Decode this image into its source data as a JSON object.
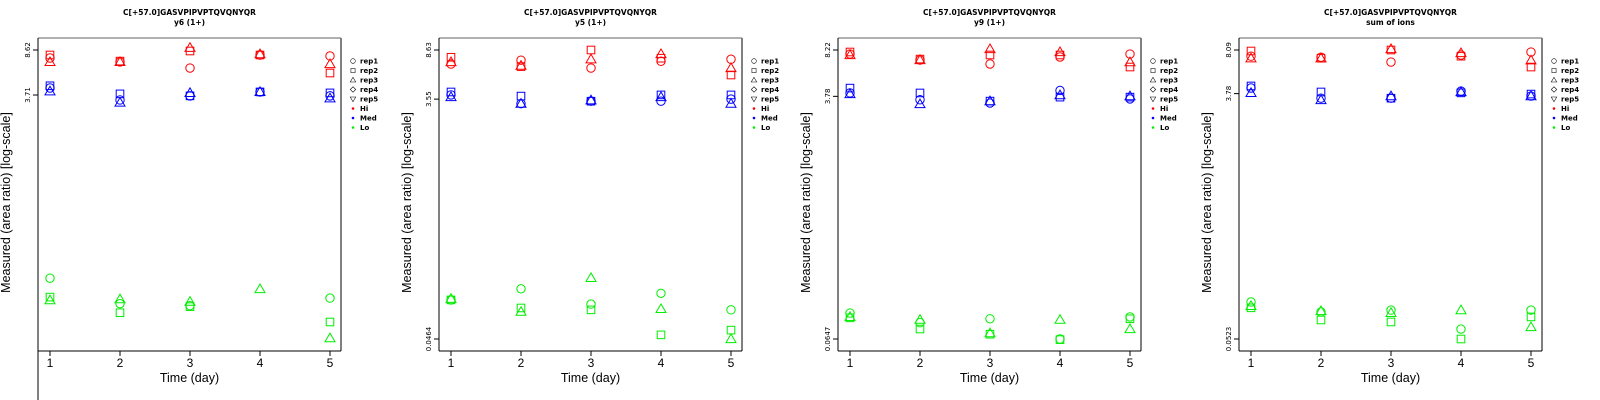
{
  "colors": {
    "Hi": "#ff0000",
    "Med": "#0000ff",
    "Lo": "#00ee00",
    "axis": "#000000",
    "frame_right": "#808080"
  },
  "chart_data": [
    {
      "type": "scatter",
      "scale": "log",
      "title": "C[+57.0]GASVPIPVPTQVQNYQR",
      "subtitle": "y6 (1+)",
      "xlabel": "Time (day)",
      "ylabel": "Measured (area ratio) [log-scale]",
      "x_ticks": [
        "1",
        "2",
        "3",
        "4",
        "5"
      ],
      "y_ticks": [
        {
          "value": 8.62,
          "label": "8.62"
        },
        {
          "value": 3.71,
          "label": "3.71"
        }
      ],
      "ylim": [
        0.0384,
        8.62
      ],
      "xlim": [
        1,
        5
      ],
      "legend": {
        "position": "right",
        "entries": [
          "rep1",
          "rep2",
          "rep3",
          "rep4",
          "rep5",
          "Hi",
          "Med",
          "Lo"
        ]
      },
      "series": [
        {
          "group": "Hi",
          "rep": "rep1",
          "x": [
            1,
            2,
            3,
            4,
            5
          ],
          "y": [
            7.42,
            6.89,
            6.15,
            7.85,
            7.71
          ]
        },
        {
          "group": "Hi",
          "rep": "rep2",
          "x": [
            1,
            2,
            3,
            4,
            5
          ],
          "y": [
            7.85,
            7.0,
            8.46,
            7.85,
            5.6
          ]
        },
        {
          "group": "Hi",
          "rep": "rep3",
          "x": [
            1,
            2,
            3,
            4,
            5
          ],
          "y": [
            6.89,
            6.89,
            8.99,
            7.98,
            6.63
          ]
        },
        {
          "group": "Med",
          "rep": "rep1",
          "x": [
            1,
            2,
            3,
            4,
            5
          ],
          "y": [
            4.23,
            3.38,
            3.65,
            3.93,
            3.65
          ]
        },
        {
          "group": "Med",
          "rep": "rep2",
          "x": [
            1,
            2,
            3,
            4,
            5
          ],
          "y": [
            4.41,
            3.79,
            3.65,
            3.93,
            3.86
          ]
        },
        {
          "group": "Med",
          "rep": "rep3",
          "x": [
            1,
            2,
            3,
            4,
            5
          ],
          "y": [
            3.98,
            3.22,
            3.86,
            3.93,
            3.49
          ]
        },
        {
          "group": "Lo",
          "rep": "rep1",
          "x": [
            1,
            2,
            3,
            5
          ],
          "y": [
            0.12,
            0.0744,
            0.0717,
            0.0826
          ]
        },
        {
          "group": "Lo",
          "rep": "rep2",
          "x": [
            1,
            2,
            3,
            5
          ],
          "y": [
            0.0842,
            0.0628,
            0.0704,
            0.0528
          ]
        },
        {
          "group": "Lo",
          "rep": "rep3",
          "x": [
            1,
            2,
            3,
            4,
            5
          ],
          "y": [
            0.0795,
            0.081,
            0.0773,
            0.0979,
            0.039
          ]
        }
      ]
    },
    {
      "type": "scatter",
      "scale": "log",
      "title": "C[+57.0]GASVPIPVPTQVQNYQR",
      "subtitle": "y5 (1+)",
      "xlabel": "Time (day)",
      "ylabel": "Measured (area ratio) [log-scale]",
      "x_ticks": [
        "1",
        "2",
        "3",
        "4",
        "5"
      ],
      "y_ticks": [
        {
          "value": 8.63,
          "label": "8.63"
        },
        {
          "value": 3.55,
          "label": "3.55"
        },
        {
          "value": 0.0464,
          "label": "0.0464"
        }
      ],
      "ylim": [
        0.0464,
        8.63
      ],
      "xlim": [
        1,
        5
      ],
      "legend": {
        "position": "right",
        "entries": [
          "rep1",
          "rep2",
          "rep3",
          "rep4",
          "rep5",
          "Hi",
          "Med",
          "Lo"
        ]
      },
      "series": [
        {
          "group": "Hi",
          "rep": "rep1",
          "x": [
            1,
            2,
            3,
            4,
            5
          ],
          "y": [
            6.7,
            7.18,
            6.23,
            7.04,
            7.3
          ]
        },
        {
          "group": "Hi",
          "rep": "rep2",
          "x": [
            1,
            2,
            3,
            4,
            5
          ],
          "y": [
            7.57,
            6.39,
            8.63,
            7.44,
            5.49
          ]
        },
        {
          "group": "Hi",
          "rep": "rep3",
          "x": [
            1,
            2,
            3,
            4,
            5
          ],
          "y": [
            6.95,
            6.5,
            7.3,
            8.02,
            6.23
          ]
        },
        {
          "group": "Med",
          "rep": "rep1",
          "x": [
            1,
            2,
            3,
            4,
            5
          ],
          "y": [
            3.83,
            3.27,
            3.42,
            3.42,
            3.55
          ]
        },
        {
          "group": "Med",
          "rep": "rep2",
          "x": [
            1,
            2,
            3,
            4,
            5
          ],
          "y": [
            4.04,
            3.75,
            3.42,
            3.83,
            3.83
          ]
        },
        {
          "group": "Med",
          "rep": "rep3",
          "x": [
            1,
            2,
            3,
            4,
            5
          ],
          "y": [
            3.69,
            3.27,
            3.48,
            3.69,
            3.27
          ]
        },
        {
          "group": "Lo",
          "rep": "rep1",
          "x": [
            1,
            2,
            3,
            4,
            5
          ],
          "y": [
            0.0941,
            0.115,
            0.0872,
            0.106,
            0.0786
          ]
        },
        {
          "group": "Lo",
          "rep": "rep2",
          "x": [
            1,
            2,
            3,
            4,
            5
          ],
          "y": [
            0.0941,
            0.0813,
            0.0786,
            0.05,
            0.0545
          ]
        },
        {
          "group": "Lo",
          "rep": "rep3",
          "x": [
            1,
            2,
            3,
            4,
            5
          ],
          "y": [
            0.096,
            0.076,
            0.14,
            0.0799,
            0.0464
          ]
        }
      ]
    },
    {
      "type": "scatter",
      "scale": "log",
      "title": "C[+57.0]GASVPIPVPTQVQNYQR",
      "subtitle": "y9 (1+)",
      "xlabel": "Time (day)",
      "ylabel": "Measured (area ratio) [log-scale]",
      "x_ticks": [
        "1",
        "2",
        "3",
        "4",
        "5"
      ],
      "y_ticks": [
        {
          "value": 8.22,
          "label": "8.22"
        },
        {
          "value": 3.78,
          "label": "3.78"
        },
        {
          "value": 0.0647,
          "label": "0.0647"
        }
      ],
      "ylim": [
        0.0647,
        8.22
      ],
      "xlim": [
        1,
        5
      ],
      "legend": {
        "position": "right",
        "entries": [
          "rep1",
          "rep2",
          "rep3",
          "rep4",
          "rep5",
          "Hi",
          "Med",
          "Lo"
        ]
      },
      "series": [
        {
          "group": "Hi",
          "rep": "rep1",
          "x": [
            1,
            2,
            3,
            4,
            5
          ],
          "y": [
            7.68,
            6.95,
            6.5,
            7.31,
            7.68
          ]
        },
        {
          "group": "Hi",
          "rep": "rep2",
          "x": [
            1,
            2,
            3,
            4,
            5
          ],
          "y": [
            7.95,
            7.06,
            7.56,
            7.56,
            6.18
          ]
        },
        {
          "group": "Hi",
          "rep": "rep3",
          "x": [
            1,
            2,
            3,
            4,
            5
          ],
          "y": [
            7.56,
            6.95,
            8.36,
            7.95,
            6.71
          ]
        },
        {
          "group": "Med",
          "rep": "rep1",
          "x": [
            1,
            2,
            3,
            4,
            5
          ],
          "y": [
            4.0,
            3.57,
            3.38,
            4.17,
            3.62
          ]
        },
        {
          "group": "Med",
          "rep": "rep2",
          "x": [
            1,
            2,
            3,
            4,
            5
          ],
          "y": [
            4.34,
            4.0,
            3.49,
            3.73,
            3.73
          ]
        },
        {
          "group": "Med",
          "rep": "rep3",
          "x": [
            1,
            2,
            3,
            4,
            5
          ],
          "y": [
            3.93,
            3.32,
            3.49,
            3.86,
            3.79
          ]
        },
        {
          "group": "Lo",
          "rep": "rep1",
          "x": [
            1,
            2,
            3,
            4,
            5
          ],
          "y": [
            0.1,
            0.085,
            0.0908,
            0.0647,
            0.0937
          ]
        },
        {
          "group": "Lo",
          "rep": "rep2",
          "x": [
            1,
            2,
            3,
            4,
            5
          ],
          "y": [
            0.0923,
            0.0765,
            0.0701,
            0.064,
            0.0908
          ]
        },
        {
          "group": "Lo",
          "rep": "rep3",
          "x": [
            1,
            2,
            3,
            4,
            5
          ],
          "y": [
            0.0937,
            0.0894,
            0.0713,
            0.0894,
            0.0765
          ]
        }
      ]
    },
    {
      "type": "scatter",
      "scale": "log",
      "title": "C[+57.0]GASVPIPVPTQVQNYQR",
      "subtitle": "sum of ions",
      "xlabel": "Time (day)",
      "ylabel": "Measured (area ratio) [log-scale]",
      "x_ticks": [
        "1",
        "2",
        "3",
        "4",
        "5"
      ],
      "y_ticks": [
        {
          "value": 8.09,
          "label": "8.09"
        },
        {
          "value": 3.78,
          "label": "3.78"
        },
        {
          "value": 0.0523,
          "label": "0.0523"
        }
      ],
      "ylim": [
        0.0523,
        8.09
      ],
      "xlim": [
        1,
        5
      ],
      "legend": {
        "position": "right",
        "entries": [
          "rep1",
          "rep2",
          "rep3",
          "rep4",
          "rep5",
          "Hi",
          "Med",
          "Lo"
        ]
      },
      "series": [
        {
          "group": "Hi",
          "rep": "rep1",
          "x": [
            1,
            2,
            3,
            4,
            5
          ],
          "y": [
            7.26,
            7.13,
            6.56,
            7.4,
            7.81
          ]
        },
        {
          "group": "Hi",
          "rep": "rep2",
          "x": [
            1,
            2,
            3,
            4,
            5
          ],
          "y": [
            7.95,
            7.01,
            8.09,
            7.26,
            6.01
          ]
        },
        {
          "group": "Hi",
          "rep": "rep3",
          "x": [
            1,
            2,
            3,
            4,
            5
          ],
          "y": [
            7.01,
            7.01,
            8.23,
            7.67,
            6.76
          ]
        },
        {
          "group": "Med",
          "rep": "rep1",
          "x": [
            1,
            2,
            3,
            4,
            5
          ],
          "y": [
            4.17,
            3.49,
            3.49,
            3.95,
            3.62
          ]
        },
        {
          "group": "Med",
          "rep": "rep2",
          "x": [
            1,
            2,
            3,
            4,
            5
          ],
          "y": [
            4.32,
            3.89,
            3.49,
            3.83,
            3.75
          ]
        },
        {
          "group": "Med",
          "rep": "rep3",
          "x": [
            1,
            2,
            3,
            4,
            5
          ],
          "y": [
            3.83,
            3.38,
            3.62,
            3.89,
            3.62
          ]
        },
        {
          "group": "Lo",
          "rep": "rep1",
          "x": [
            1,
            2,
            3,
            4,
            5
          ],
          "y": [
            0.0998,
            0.0838,
            0.0866,
            0.0622,
            0.0866
          ]
        },
        {
          "group": "Lo",
          "rep": "rep2",
          "x": [
            1,
            2,
            3,
            4,
            5
          ],
          "y": [
            0.0901,
            0.0729,
            0.0704,
            0.0523,
            0.0769
          ]
        },
        {
          "group": "Lo",
          "rep": "rep3",
          "x": [
            1,
            2,
            3,
            4,
            5
          ],
          "y": [
            0.0932,
            0.0852,
            0.0825,
            0.0866,
            0.0644
          ]
        }
      ]
    }
  ]
}
